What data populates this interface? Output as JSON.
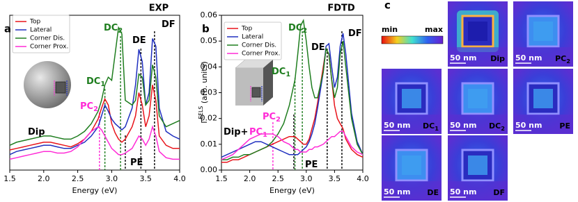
{
  "chart_data": [
    {
      "type": "line",
      "panel_label": "a",
      "title": "EXP",
      "xlabel": "Energy (eV)",
      "xlim": [
        1.5,
        4.0
      ],
      "ylim": [
        0,
        1.0
      ],
      "xticks": [
        1.5,
        {
          "value": 2,
          "label": "2.0"
        },
        2.5,
        {
          "value": 3,
          "label": "3.0"
        },
        3.5,
        {
          "value": 4,
          "label": "4.0"
        }
      ],
      "legend": "upper left",
      "x": [
        1.5,
        1.6,
        1.7,
        1.8,
        1.9,
        2.0,
        2.1,
        2.2,
        2.3,
        2.4,
        2.5,
        2.6,
        2.7,
        2.8,
        2.85,
        2.9,
        2.95,
        3.0,
        3.05,
        3.1,
        3.15,
        3.2,
        3.3,
        3.35,
        3.4,
        3.45,
        3.5,
        3.55,
        3.6,
        3.65,
        3.7,
        3.8,
        3.9,
        4.0
      ],
      "series": [
        {
          "name": "Top",
          "color": "#e8141b",
          "values": [
            0.13,
            0.14,
            0.15,
            0.16,
            0.17,
            0.18,
            0.18,
            0.17,
            0.16,
            0.15,
            0.17,
            0.2,
            0.25,
            0.33,
            0.4,
            0.46,
            0.42,
            0.3,
            0.24,
            0.2,
            0.18,
            0.2,
            0.28,
            0.35,
            0.5,
            0.42,
            0.28,
            0.35,
            0.55,
            0.45,
            0.22,
            0.16,
            0.14,
            0.14
          ]
        },
        {
          "name": "Lateral",
          "color": "#1f2fbf",
          "values": [
            0.1,
            0.12,
            0.13,
            0.14,
            0.15,
            0.16,
            0.16,
            0.15,
            0.14,
            0.14,
            0.16,
            0.18,
            0.22,
            0.28,
            0.35,
            0.42,
            0.38,
            0.33,
            0.3,
            0.28,
            0.26,
            0.28,
            0.4,
            0.55,
            0.78,
            0.7,
            0.42,
            0.5,
            0.85,
            0.8,
            0.4,
            0.25,
            0.22,
            0.2
          ]
        },
        {
          "name": "Corner Dis.",
          "color": "#1e7d1e",
          "values": [
            0.16,
            0.18,
            0.19,
            0.2,
            0.21,
            0.22,
            0.22,
            0.21,
            0.2,
            0.2,
            0.22,
            0.25,
            0.3,
            0.38,
            0.45,
            0.55,
            0.6,
            0.58,
            0.75,
            0.92,
            0.88,
            0.45,
            0.42,
            0.45,
            0.62,
            0.6,
            0.42,
            0.45,
            0.68,
            0.6,
            0.35,
            0.28,
            0.3,
            0.32
          ]
        },
        {
          "name": "Corner Prox.",
          "color": "#ff2bd6",
          "values": [
            0.07,
            0.08,
            0.09,
            0.1,
            0.11,
            0.12,
            0.12,
            0.11,
            0.11,
            0.12,
            0.15,
            0.2,
            0.25,
            0.28,
            0.26,
            0.22,
            0.18,
            0.14,
            0.12,
            0.1,
            0.1,
            0.11,
            0.14,
            0.18,
            0.22,
            0.2,
            0.16,
            0.2,
            0.28,
            0.22,
            0.12,
            0.08,
            0.07,
            0.07
          ]
        }
      ],
      "annotations": [
        {
          "text": "DC",
          "sub": "2",
          "x": 3.13,
          "color": "#1e7d1e"
        },
        {
          "text": "DE",
          "x": 3.43,
          "color": "#000000"
        },
        {
          "text": "DF",
          "x": 3.63,
          "color": "#000000"
        },
        {
          "text": "DC",
          "sub": "1",
          "x": 2.9,
          "color": "#1e7d1e"
        },
        {
          "text": "PC",
          "sub": "2",
          "x": 2.82,
          "color": "#ff2bd6"
        },
        {
          "text": "Dip",
          "color": "#000000"
        },
        {
          "text": "PE",
          "x": 3.2,
          "color": "#000000"
        }
      ]
    },
    {
      "type": "line",
      "panel_label": "b",
      "title": "FDTD",
      "xlabel": "Energy (eV)",
      "ylabel": {
        "symbol": "Γ",
        "sup": "EELS",
        "rest": " (arb. units)"
      },
      "xlim": [
        1.5,
        4.0
      ],
      "ylim": [
        0,
        0.06
      ],
      "xticks": [
        1.5,
        {
          "value": 2,
          "label": "2.0"
        },
        2.5,
        {
          "value": 3,
          "label": "3.0"
        },
        3.5,
        {
          "value": 4,
          "label": "4.0"
        }
      ],
      "yticks": [
        {
          "value": 0,
          "label": "0.00"
        },
        {
          "value": 0.01,
          "label": "0.01"
        },
        {
          "value": 0.02,
          "label": "0.02"
        },
        {
          "value": 0.03,
          "label": "0.03"
        },
        {
          "value": 0.04,
          "label": "0.04"
        },
        {
          "value": 0.05,
          "label": "0.05"
        },
        {
          "value": 0.06,
          "label": "0.06"
        }
      ],
      "legend": "upper left",
      "x": [
        1.5,
        1.6,
        1.7,
        1.8,
        1.9,
        2.0,
        2.1,
        2.2,
        2.3,
        2.4,
        2.5,
        2.6,
        2.7,
        2.8,
        2.85,
        2.9,
        2.95,
        3.0,
        3.05,
        3.1,
        3.15,
        3.2,
        3.3,
        3.35,
        3.4,
        3.45,
        3.5,
        3.55,
        3.6,
        3.65,
        3.7,
        3.8,
        3.9,
        4.0
      ],
      "series": [
        {
          "name": "Top",
          "color": "#e8141b",
          "values": [
            0.003,
            0.003,
            0.004,
            0.004,
            0.005,
            0.006,
            0.007,
            0.008,
            0.009,
            0.01,
            0.011,
            0.012,
            0.013,
            0.013,
            0.012,
            0.011,
            0.01,
            0.01,
            0.012,
            0.016,
            0.02,
            0.026,
            0.04,
            0.047,
            0.045,
            0.035,
            0.025,
            0.02,
            0.018,
            0.016,
            0.012,
            0.008,
            0.006,
            0.005
          ]
        },
        {
          "name": "Lateral",
          "color": "#1f2fbf",
          "values": [
            0.005,
            0.006,
            0.007,
            0.008,
            0.009,
            0.01,
            0.011,
            0.011,
            0.01,
            0.009,
            0.008,
            0.007,
            0.006,
            0.006,
            0.006,
            0.007,
            0.008,
            0.009,
            0.011,
            0.014,
            0.018,
            0.024,
            0.038,
            0.048,
            0.049,
            0.04,
            0.032,
            0.036,
            0.048,
            0.053,
            0.045,
            0.022,
            0.011,
            0.006
          ]
        },
        {
          "name": "Corner Dis.",
          "color": "#1e7d1e",
          "values": [
            0.004,
            0.004,
            0.005,
            0.005,
            0.006,
            0.006,
            0.007,
            0.008,
            0.009,
            0.011,
            0.014,
            0.018,
            0.025,
            0.035,
            0.045,
            0.056,
            0.058,
            0.05,
            0.04,
            0.032,
            0.028,
            0.028,
            0.038,
            0.047,
            0.045,
            0.035,
            0.028,
            0.032,
            0.045,
            0.05,
            0.04,
            0.02,
            0.01,
            0.006
          ]
        },
        {
          "name": "Corner Prox.",
          "color": "#ff2bd6",
          "values": [
            0.004,
            0.005,
            0.006,
            0.008,
            0.01,
            0.012,
            0.013,
            0.014,
            0.014,
            0.014,
            0.013,
            0.011,
            0.01,
            0.008,
            0.008,
            0.007,
            0.007,
            0.007,
            0.008,
            0.008,
            0.009,
            0.009,
            0.01,
            0.011,
            0.012,
            0.013,
            0.013,
            0.014,
            0.015,
            0.015,
            0.013,
            0.009,
            0.007,
            0.006
          ]
        }
      ],
      "annotations": [
        {
          "text": "DC",
          "sub": "2",
          "x": 2.93,
          "color": "#1e7d1e"
        },
        {
          "text": "DE",
          "x": 3.37,
          "color": "#000000"
        },
        {
          "text": "DF",
          "x": 3.63,
          "color": "#000000"
        },
        {
          "text": "DC",
          "sub": "1",
          "x": 2.8,
          "color": "#1e7d1e"
        },
        {
          "text": "PC",
          "sub": "2",
          "x": 2.41,
          "color": "#ff2bd6"
        },
        {
          "text": "Dip+",
          "color": "#000000"
        },
        {
          "text": "PC",
          "sub": "1",
          "color": "#ff2bd6"
        },
        {
          "text": "PE",
          "x": 2.78,
          "color": "#000000"
        }
      ]
    }
  ],
  "panel_c": {
    "label": "c",
    "colorbar": {
      "min": "min",
      "max": "max"
    },
    "images": [
      {
        "label": "Dip",
        "scale": "50 nm"
      },
      {
        "label": "PC",
        "sub": "2",
        "scale": "50 nm"
      },
      {
        "label": "DC",
        "sub": "1",
        "scale": "50 nm"
      },
      {
        "label": "DC",
        "sub": "2",
        "scale": "50 nm"
      },
      {
        "label": "PE",
        "scale": "50 nm"
      },
      {
        "label": "DE",
        "scale": "50 nm"
      },
      {
        "label": "DF",
        "scale": "50 nm"
      }
    ]
  }
}
